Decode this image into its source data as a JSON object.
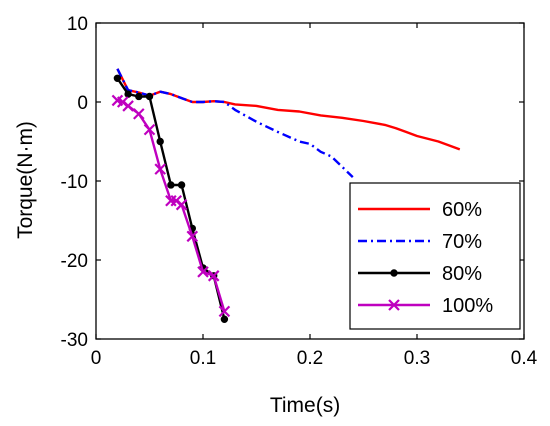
{
  "chart_data": {
    "type": "line",
    "xlabel": "Time(s)",
    "ylabel": "Torque(N·m)",
    "xlim": [
      0,
      0.4
    ],
    "ylim": [
      -30,
      10
    ],
    "xticks": [
      "0",
      "0.1",
      "0.2",
      "0.3",
      "0.4"
    ],
    "yticks": [
      "10",
      "0",
      "-10",
      "-20",
      "-30"
    ],
    "grid": false,
    "legend_position": "bottom-right",
    "series": [
      {
        "name": "60%",
        "color": "#ff0000",
        "style": "solid",
        "marker": "none",
        "x": [
          0.02,
          0.03,
          0.04,
          0.05,
          0.06,
          0.07,
          0.08,
          0.09,
          0.1,
          0.11,
          0.12,
          0.13,
          0.15,
          0.17,
          0.19,
          0.21,
          0.23,
          0.25,
          0.27,
          0.28,
          0.29,
          0.3,
          0.32,
          0.34
        ],
        "y": [
          4.2,
          1.5,
          1.2,
          0.8,
          1.3,
          1.0,
          0.5,
          0.0,
          0.0,
          0.1,
          0.0,
          -0.3,
          -0.5,
          -1.0,
          -1.2,
          -1.7,
          -2.0,
          -2.4,
          -2.9,
          -3.3,
          -3.8,
          -4.3,
          -5.0,
          -6.0
        ]
      },
      {
        "name": "70%",
        "color": "#0000ff",
        "style": "dashdot",
        "marker": "none",
        "x": [
          0.02,
          0.03,
          0.04,
          0.05,
          0.06,
          0.07,
          0.08,
          0.09,
          0.1,
          0.11,
          0.12,
          0.13,
          0.15,
          0.17,
          0.19,
          0.2,
          0.21,
          0.22,
          0.23,
          0.24
        ],
        "y": [
          4.2,
          1.5,
          1.2,
          0.8,
          1.3,
          1.0,
          0.5,
          0.0,
          0.0,
          0.1,
          0.0,
          -1.0,
          -2.5,
          -3.8,
          -5.0,
          -5.3,
          -6.3,
          -6.9,
          -8.2,
          -9.5
        ]
      },
      {
        "name": "80%",
        "color": "#000000",
        "style": "solid",
        "marker": "dot",
        "x": [
          0.02,
          0.03,
          0.04,
          0.05,
          0.06,
          0.07,
          0.08,
          0.09,
          0.1,
          0.11,
          0.12
        ],
        "y": [
          3.0,
          1.0,
          0.7,
          0.7,
          -5.0,
          -10.5,
          -10.5,
          -16.0,
          -21.0,
          -22.0,
          -27.5
        ]
      },
      {
        "name": "100%",
        "color": "#bf00bf",
        "style": "solid",
        "marker": "x",
        "x": [
          0.02,
          0.025,
          0.03,
          0.04,
          0.05,
          0.06,
          0.07,
          0.075,
          0.08,
          0.09,
          0.1,
          0.11,
          0.12
        ],
        "y": [
          0.2,
          0.0,
          -0.5,
          -1.5,
          -3.5,
          -8.5,
          -12.5,
          -12.5,
          -13.0,
          -17.0,
          -21.5,
          -22.0,
          -26.5
        ]
      }
    ]
  }
}
